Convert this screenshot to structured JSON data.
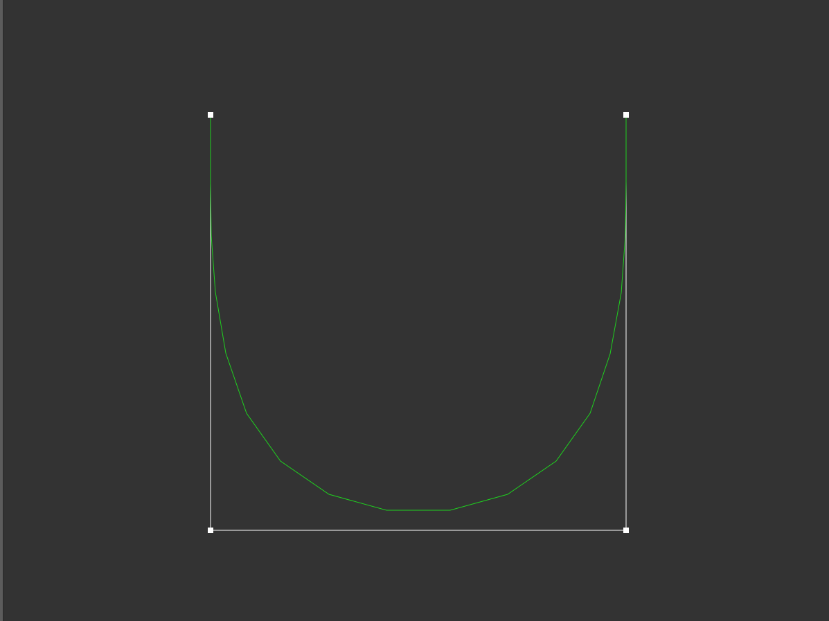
{
  "editor": {
    "background_color": "#333333",
    "control_polygon_color": "#ffffff",
    "curve_color": "#00cc00",
    "handle_color": "#ffffff"
  },
  "control_points": [
    {
      "name": "p0-top-left"
    },
    {
      "name": "p1-bottom-left"
    },
    {
      "name": "p2-bottom-right"
    },
    {
      "name": "p3-top-right"
    }
  ]
}
